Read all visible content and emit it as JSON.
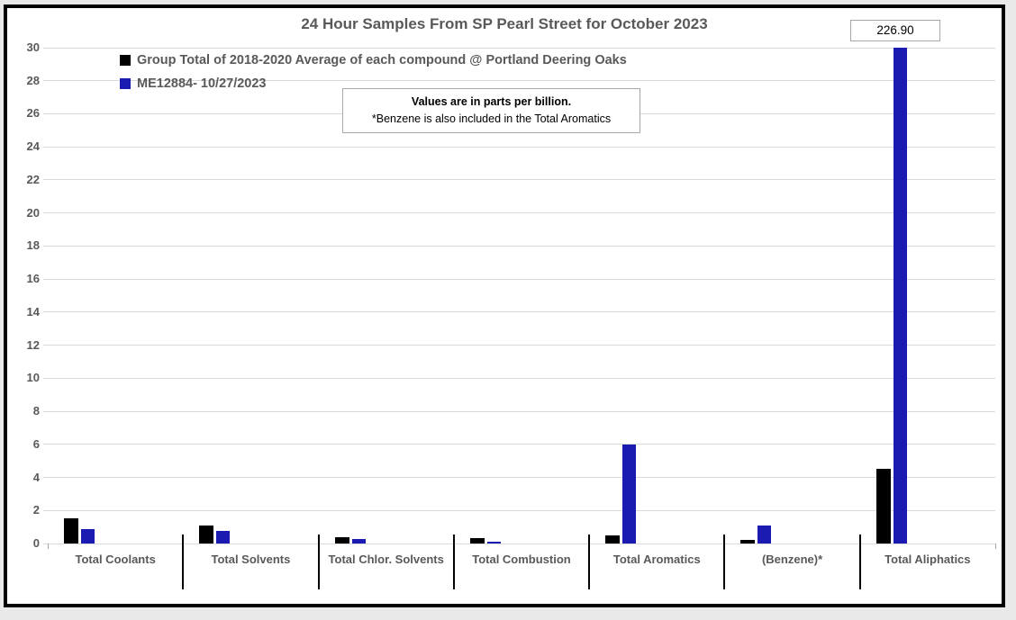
{
  "page": {
    "background_color": "#e9e9e9",
    "frame_border_color": "#000000",
    "text_color": "#595959",
    "gridline_color": "#d9d9d9",
    "box_border_color": "#a6a6a6"
  },
  "chart_data": {
    "type": "bar",
    "title": "24 Hour Samples From SP Pearl Street for October 2023",
    "categories": [
      "Total Coolants",
      "Total Solvents",
      "Total Chlor. Solvents",
      "Total Combustion",
      "Total Aromatics",
      "(Benzene)*",
      "Total Aliphatics"
    ],
    "series": [
      {
        "name": "Group Total of 2018-2020 Average of each compound @ Portland Deering Oaks",
        "color": "#000000",
        "values": [
          1.5,
          1.1,
          0.4,
          0.3,
          0.5,
          0.2,
          4.5
        ]
      },
      {
        "name": "ME12884- 10/27/2023",
        "color": "#1b1bb2",
        "values": [
          0.85,
          0.75,
          0.25,
          0.1,
          6.0,
          1.1,
          226.9
        ]
      }
    ],
    "ylim": [
      0,
      30
    ],
    "ytick_step": 2,
    "grid": true,
    "legend_position": "top-left",
    "bars_clipped_at_ymax": true,
    "clipped_bar_label": "226.90",
    "note": {
      "line1": "Values are in parts per billion.",
      "line2": "*Benzene is also included in the Total Aromatics"
    }
  }
}
